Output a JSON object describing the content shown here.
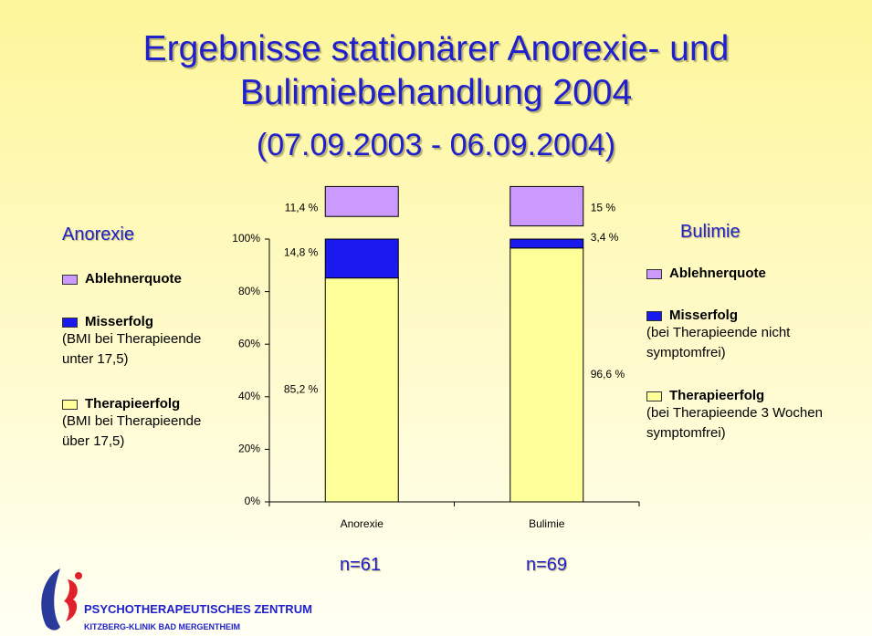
{
  "title": [
    "Ergebnisse stationärer Anorexie- und",
    "Bulimiebehandlung 2004"
  ],
  "subtitle": "(07.09.2003 - 06.09.2004)",
  "chart_data": {
    "type": "stacked_bar",
    "categories": [
      "Anorexie",
      "Bulimie"
    ],
    "series": [
      {
        "name": "Ablehnerquote",
        "color": "#cc99ff",
        "values": [
          11.4,
          15
        ],
        "value_labels": [
          "11,4 %",
          "15 %"
        ]
      },
      {
        "name": "Misserfolg",
        "color": "#1a1aee",
        "values": [
          14.8,
          3.4
        ],
        "value_labels": [
          "14,8 %",
          "3,4 %"
        ]
      },
      {
        "name": "Therapieerfolg",
        "color": "#ffff99",
        "values": [
          85.2,
          96.6
        ],
        "value_labels": [
          "85,2 %",
          "96,6 %"
        ]
      }
    ],
    "ylim": [
      0,
      120
    ],
    "yticks": [
      {
        "value": 0,
        "label": "0%"
      },
      {
        "value": 20,
        "label": "20%"
      },
      {
        "value": 40,
        "label": "40%"
      },
      {
        "value": 60,
        "label": "60%"
      },
      {
        "value": 80,
        "label": "80%"
      },
      {
        "value": 100,
        "label": "100%"
      }
    ],
    "sample_sizes": [
      "n=61",
      "n=69"
    ]
  },
  "legends": [
    {
      "title": "Anorexie",
      "notes": [
        "(BMI bei Therapieende unter 17,5)",
        "(BMI bei Therapieende über 17,5)"
      ]
    },
    {
      "title": "Bulimie",
      "notes": [
        "(bei Therapieende nicht symptomfrei)",
        "(bei Therapieende 3 Wochen symptomfrei)"
      ]
    }
  ],
  "footer": {
    "name": "PSYCHOTHERAPEUTISCHES ZENTRUM",
    "clinic": "KITZBERG-KLINIK BAD MERGENTHEIM"
  }
}
